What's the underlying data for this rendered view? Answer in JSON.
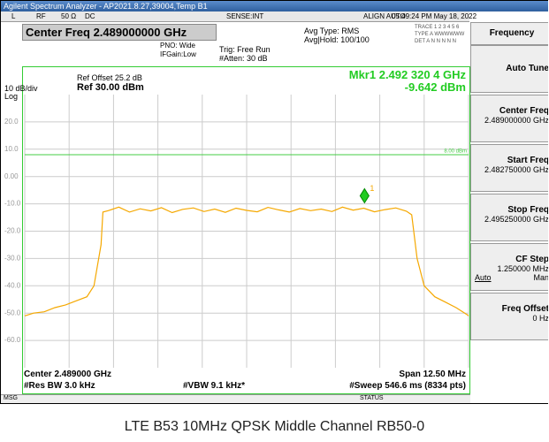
{
  "window": {
    "title": "Agilent Spectrum Analyzer - AP2021.8.27,39004,Temp B1"
  },
  "status_bar": {
    "items": [
      "L",
      "RF",
      "50 Ω",
      "DC",
      "SENSE:INT",
      "ALIGN AUTO"
    ],
    "datetime": "05:49:24 PM May 18, 2022"
  },
  "header": {
    "center_freq": "Center Freq 2.489000000 GHz",
    "pno": "PNO: Wide",
    "ifgain": "IFGain:Low",
    "trig": "Trig: Free Run",
    "atten": "#Atten: 30 dB",
    "avg_type": "Avg Type: RMS",
    "avg_hold": "Avg|Hold: 100/100",
    "trace": "TRACE 1 2 3 4 5 6",
    "type": "TYPE A WWWWWW",
    "det": "DET A N N N N N"
  },
  "plot": {
    "ref_offset": "Ref Offset 25.2 dB",
    "scale": "10 dB/div",
    "ref_level": "Ref 30.00 dBm",
    "log": "Log",
    "marker_readout": "Mkr1 2.492 320 4 GHz",
    "marker_value": "-9.642 dBm",
    "marker": {
      "label": "1",
      "x": 2.4923204,
      "y": -9.642
    },
    "display_line": {
      "value": 8,
      "label": "8.00 dBm"
    },
    "xlim": [
      2.48275,
      2.49525
    ],
    "xticks": [
      2.48275,
      2.484,
      2.48525,
      2.4865,
      2.48775,
      2.489,
      2.49025,
      2.4915,
      2.49275,
      2.494,
      2.49525
    ],
    "ylim": [
      -70,
      30
    ],
    "yticks": [
      {
        "value": 20,
        "label": "20.0"
      },
      {
        "value": 10,
        "label": "10.0"
      },
      {
        "value": 0,
        "label": "0.00"
      },
      {
        "value": -10,
        "label": "-10.0"
      },
      {
        "value": -20,
        "label": "-20.0"
      },
      {
        "value": -30,
        "label": "-30.0"
      },
      {
        "value": -40,
        "label": "-40.0"
      },
      {
        "value": -50,
        "label": "-50.0"
      },
      {
        "value": -60,
        "label": "-60.0"
      }
    ],
    "trace": {
      "color": "#f5a800",
      "x": [
        2.48275,
        2.483,
        2.4833,
        2.4836,
        2.4839,
        2.4842,
        2.4845,
        2.4847,
        2.4849,
        2.48495,
        2.4851,
        2.4854,
        2.4857,
        2.486,
        2.4863,
        2.4866,
        2.4869,
        2.4872,
        2.4875,
        2.4878,
        2.4881,
        2.4884,
        2.4887,
        2.489,
        2.4893,
        2.4896,
        2.4899,
        2.4902,
        2.4905,
        2.4908,
        2.4911,
        2.4914,
        2.4917,
        2.492,
        2.4923,
        2.4926,
        2.4929,
        2.4932,
        2.4935,
        2.49365,
        2.4938,
        2.494,
        2.4943,
        2.4946,
        2.4949,
        2.4952,
        2.49525
      ],
      "y": [
        -51,
        -50,
        -49.5,
        -48,
        -47,
        -45.5,
        -44,
        -40,
        -25,
        -13,
        -12.5,
        -11.2,
        -13,
        -11.8,
        -12.6,
        -11.4,
        -13.2,
        -12,
        -11.5,
        -12.8,
        -11.9,
        -13.1,
        -11.6,
        -12.4,
        -12.9,
        -11.3,
        -12.2,
        -13,
        -11.7,
        -12.5,
        -11.9,
        -12.8,
        -11.2,
        -12.3,
        -11.6,
        -12.9,
        -12.1,
        -11.5,
        -12.7,
        -14,
        -30,
        -40,
        -44,
        -46,
        -48,
        -50.5,
        -51
      ]
    }
  },
  "footer": {
    "center": "Center 2.489000 GHz",
    "res_bw": "#Res BW 3.0 kHz",
    "vbw": "#VBW 9.1 kHz*",
    "span": "Span 12.50 MHz",
    "sweep": "#Sweep  546.6 ms (8334 pts)",
    "msg": "MSG",
    "status": "STATUS"
  },
  "softkeys": {
    "title": "Frequency",
    "keys": [
      {
        "label": "Auto Tune"
      },
      {
        "label": "Center Freq",
        "value": "2.489000000 GHz"
      },
      {
        "label": "Start Freq",
        "value": "2.482750000 GHz"
      },
      {
        "label": "Stop Freq",
        "value": "2.495250000 GHz"
      },
      {
        "label": "CF Step",
        "value": "1.250000 MHz",
        "left": "Auto",
        "right": "Man"
      },
      {
        "label": "Freq Offset",
        "value": "0 Hz"
      }
    ]
  },
  "caption": "LTE B53 10MHz QPSK Middle Channel RB50-0"
}
